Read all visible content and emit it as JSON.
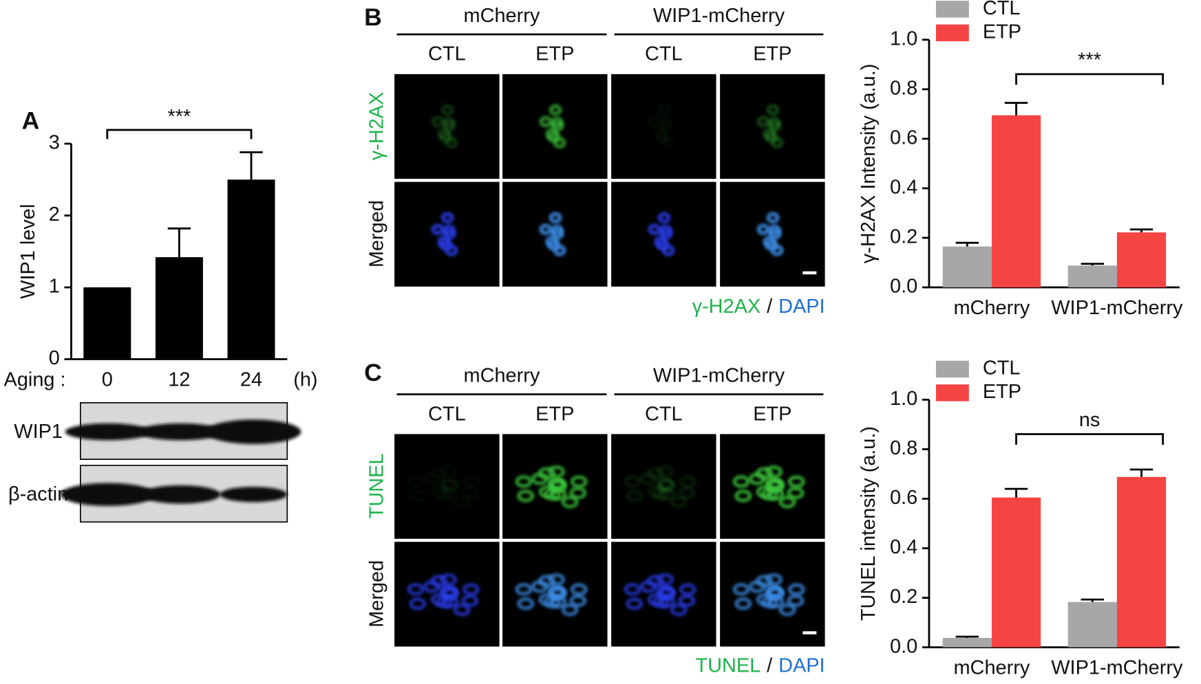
{
  "chart_data": [
    {
      "type": "bar",
      "ylabel": "WIP1 level",
      "x_prefix": "Aging :",
      "x_suffix": "(h)",
      "categories": [
        "0",
        "12",
        "24"
      ],
      "values": [
        1,
        1.42,
        2.5
      ],
      "errors": [
        0,
        0.4,
        0.38
      ],
      "color": "#000000",
      "ylim": [
        0,
        3
      ],
      "yticks": [
        0,
        1,
        2,
        3
      ],
      "annotation": "***"
    },
    {
      "type": "grouped_bar",
      "ylabel": "γ-H2AX Intensity (a.u.)",
      "categories": [
        "mCherry",
        "WIP1-mCherry"
      ],
      "series": [
        {
          "name": "CTL",
          "color": "#a7a7a9",
          "values": [
            0.165,
            0.088
          ],
          "errors": [
            0.015,
            0.007
          ]
        },
        {
          "name": "ETP",
          "color": "#f44444",
          "values": [
            0.695,
            0.222
          ],
          "errors": [
            0.05,
            0.012
          ]
        }
      ],
      "ylim": [
        0,
        1
      ],
      "yticks": [
        {
          "value": 0,
          "label": "0.0"
        },
        0.2,
        0.4,
        0.6,
        0.8,
        {
          "value": 1,
          "label": "1.0"
        }
      ],
      "legend": "top-left",
      "annotation": "***"
    },
    {
      "type": "grouped_bar",
      "ylabel": "TUNEL intensity (a.u.)",
      "categories": [
        "mCherry",
        "WIP1-mCherry"
      ],
      "series": [
        {
          "name": "CTL",
          "color": "#a7a7a9",
          "values": [
            0.038,
            0.183
          ],
          "errors": [
            0.005,
            0.01
          ]
        },
        {
          "name": "ETP",
          "color": "#f44444",
          "values": [
            0.605,
            0.688
          ],
          "errors": [
            0.035,
            0.03
          ]
        }
      ],
      "ylim": [
        0,
        1
      ],
      "yticks": [
        {
          "value": 0,
          "label": "0.0"
        },
        0.2,
        0.4,
        0.6,
        0.8,
        {
          "value": 1,
          "label": "1.0"
        }
      ],
      "legend": "top-left",
      "annotation": "ns"
    }
  ],
  "panels": {
    "A": {
      "label": "A",
      "blot_rows": [
        "WIP1",
        "β-actin"
      ]
    },
    "B": {
      "label": "B",
      "groups": [
        "mCherry",
        "WIP1-mCherry"
      ],
      "columns": [
        "CTL",
        "ETP",
        "CTL",
        "ETP"
      ],
      "rows": [
        "γ-H2AX",
        "Merged"
      ],
      "footer": [
        "γ-H2AX",
        "/",
        "DAPI"
      ]
    },
    "C": {
      "label": "C",
      "groups": [
        "mCherry",
        "WIP1-mCherry"
      ],
      "columns": [
        "CTL",
        "ETP",
        "CTL",
        "ETP"
      ],
      "rows": [
        "TUNEL",
        "Merged"
      ],
      "footer": [
        "TUNEL",
        "/",
        "DAPI"
      ]
    }
  }
}
